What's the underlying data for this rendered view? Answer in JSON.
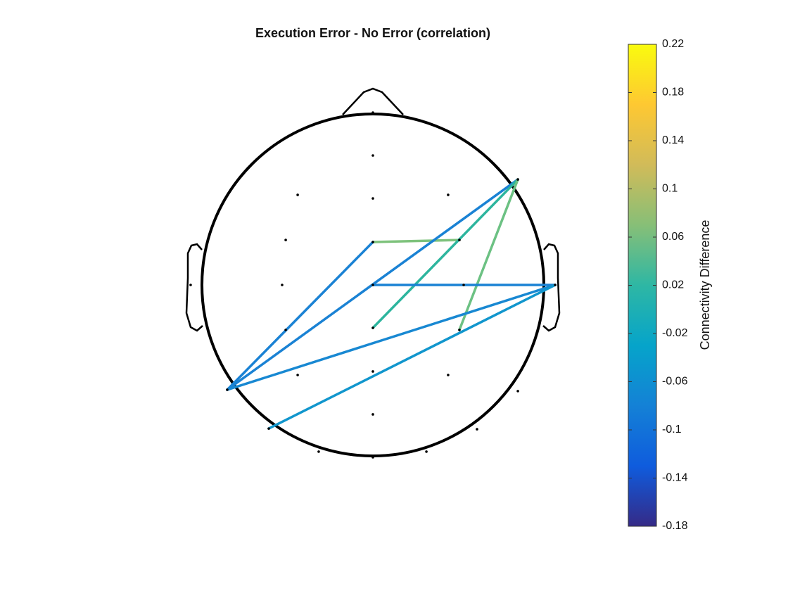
{
  "chart_data": {
    "type": "connectivity",
    "title": "Execution Error - No Error (correlation)",
    "colorbar_label": "Connectivity Difference",
    "clim": [
      -0.18,
      0.22
    ],
    "cticks": [
      -0.18,
      -0.14,
      -0.1,
      -0.06,
      -0.02,
      0.02,
      0.06,
      0.1,
      0.14,
      0.18,
      0.22
    ],
    "colormap": [
      "#352a87",
      "#0f5cdd",
      "#1481d6",
      "#06a4ca",
      "#2eb7a4",
      "#87bf77",
      "#d1bb59",
      "#fec832",
      "#f9fb0e"
    ],
    "electrodes": [
      {
        "x": 0,
        "y": 1.008
      },
      {
        "x": 0,
        "y": 0.757
      },
      {
        "x": -0.44,
        "y": 0.527
      },
      {
        "x": 0,
        "y": 0.506
      },
      {
        "x": 0.44,
        "y": 0.527
      },
      {
        "x": 0.848,
        "y": 0.617
      },
      {
        "x": -0.51,
        "y": 0.263
      },
      {
        "x": 0,
        "y": 0.251
      },
      {
        "x": 0.506,
        "y": 0.263
      },
      {
        "x": -1.066,
        "y": 0
      },
      {
        "x": -0.531,
        "y": 0
      },
      {
        "x": 0,
        "y": 0
      },
      {
        "x": 0.531,
        "y": 0
      },
      {
        "x": 1.066,
        "y": 0
      },
      {
        "x": -0.51,
        "y": -0.263
      },
      {
        "x": 0,
        "y": -0.251
      },
      {
        "x": 0.506,
        "y": -0.263
      },
      {
        "x": -0.852,
        "y": -0.613
      },
      {
        "x": -0.44,
        "y": -0.527
      },
      {
        "x": 0,
        "y": -0.506
      },
      {
        "x": 0.44,
        "y": -0.527
      },
      {
        "x": 0.848,
        "y": -0.621
      },
      {
        "x": 0,
        "y": -0.757
      },
      {
        "x": -0.609,
        "y": -0.84
      },
      {
        "x": 0.609,
        "y": -0.844
      },
      {
        "x": -0.317,
        "y": -0.975
      },
      {
        "x": 0,
        "y": -1.008
      },
      {
        "x": 0.313,
        "y": -0.975
      }
    ],
    "connections": [
      {
        "from": 7,
        "to": 8,
        "value": 0.08,
        "color": "#7ec27c"
      },
      {
        "from": 7,
        "to": 17,
        "value": -0.09,
        "color": "#1a82d4"
      },
      {
        "from": 5,
        "to": 17,
        "value": -0.09,
        "color": "#1a82d4"
      },
      {
        "from": 5,
        "to": 15,
        "value": 0.03,
        "color": "#2db59e"
      },
      {
        "from": 5,
        "to": 16,
        "value": 0.07,
        "color": "#6cc183"
      },
      {
        "from": 11,
        "to": 13,
        "value": -0.09,
        "color": "#1a82d4"
      },
      {
        "from": 13,
        "to": 17,
        "value": -0.08,
        "color": "#1888d2"
      },
      {
        "from": 13,
        "to": 23,
        "value": -0.05,
        "color": "#1196cd"
      }
    ]
  }
}
